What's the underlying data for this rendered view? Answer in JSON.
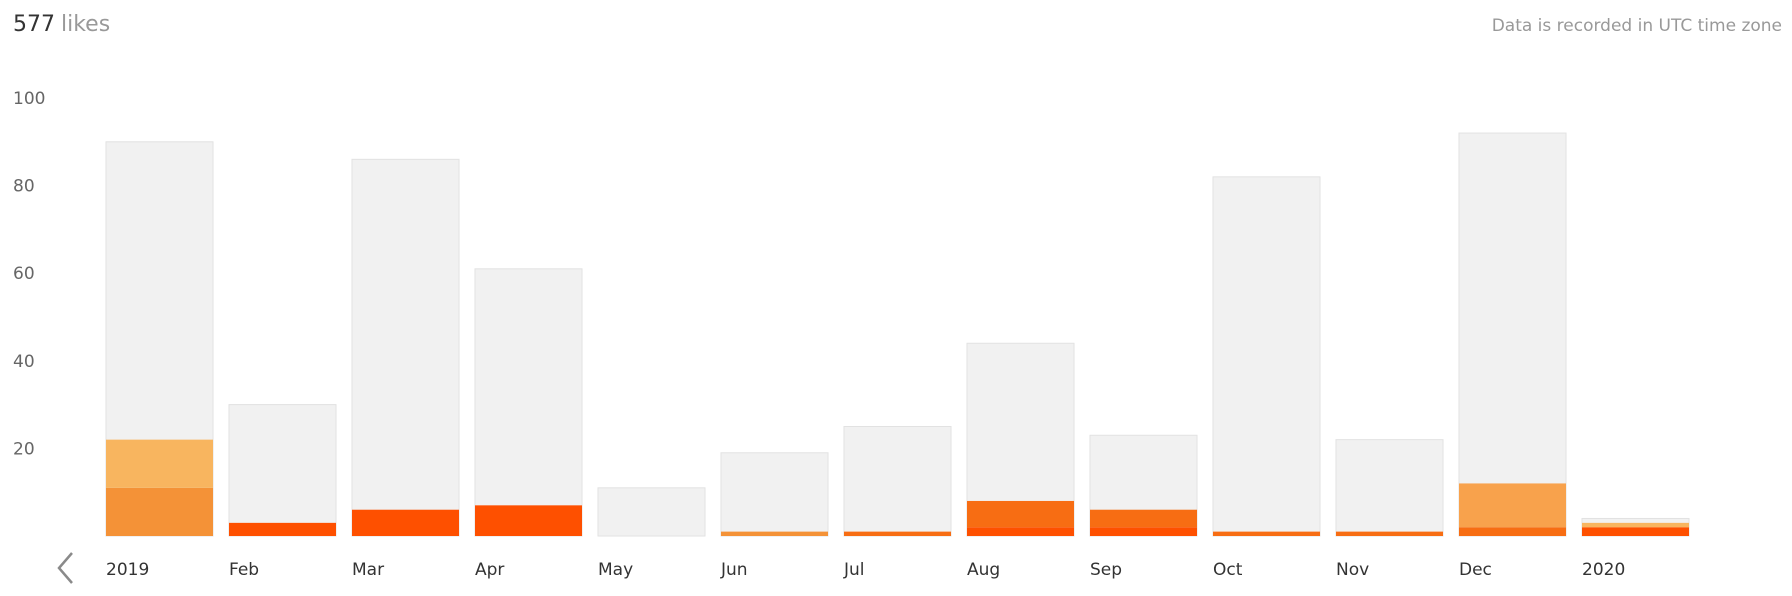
{
  "header": {
    "count": "577",
    "unit": "likes"
  },
  "timezone_note": "Data is recorded in UTC time zone",
  "colors": {
    "background_bar": "#f1f1f1",
    "background_bar_stroke": "#e2e2e2",
    "light_orange": "#f8b55f",
    "mid_orange": "#f49237",
    "orange": "#f76d13",
    "dark_orange": "#fe5000"
  },
  "icons": {
    "prev": "chevron-left-icon"
  },
  "chart_data": {
    "type": "bar",
    "categories": [
      "2019",
      "Feb",
      "Mar",
      "Apr",
      "May",
      "Jun",
      "Jul",
      "Aug",
      "Sep",
      "Oct",
      "Nov",
      "Dec",
      "2020"
    ],
    "ylim": [
      0,
      100
    ],
    "yticks": [
      20,
      40,
      60,
      80,
      100
    ],
    "grid": false,
    "totals": [
      90,
      30,
      86,
      61,
      11,
      19,
      25,
      44,
      23,
      82,
      22,
      92,
      4
    ],
    "stacks": [
      [
        {
          "value": 11,
          "color": "#f49237"
        },
        {
          "value": 11,
          "color": "#f8b55f"
        }
      ],
      [
        {
          "value": 3,
          "color": "#fe5000"
        }
      ],
      [
        {
          "value": 6,
          "color": "#fe5000"
        }
      ],
      [
        {
          "value": 7,
          "color": "#fe5000"
        }
      ],
      [],
      [
        {
          "value": 1,
          "color": "#f49237"
        }
      ],
      [
        {
          "value": 1,
          "color": "#f76d13"
        }
      ],
      [
        {
          "value": 2,
          "color": "#fe5000"
        },
        {
          "value": 6,
          "color": "#f76d13"
        }
      ],
      [
        {
          "value": 2,
          "color": "#fe5000"
        },
        {
          "value": 4,
          "color": "#f76d13"
        }
      ],
      [
        {
          "value": 1,
          "color": "#f76d13"
        }
      ],
      [
        {
          "value": 1,
          "color": "#f76d13"
        }
      ],
      [
        {
          "value": 2,
          "color": "#f76d13"
        },
        {
          "value": 10,
          "color": "#f8a24c"
        }
      ],
      [
        {
          "value": 2,
          "color": "#fe5000"
        },
        {
          "value": 1,
          "color": "#f8b55f"
        }
      ]
    ]
  }
}
